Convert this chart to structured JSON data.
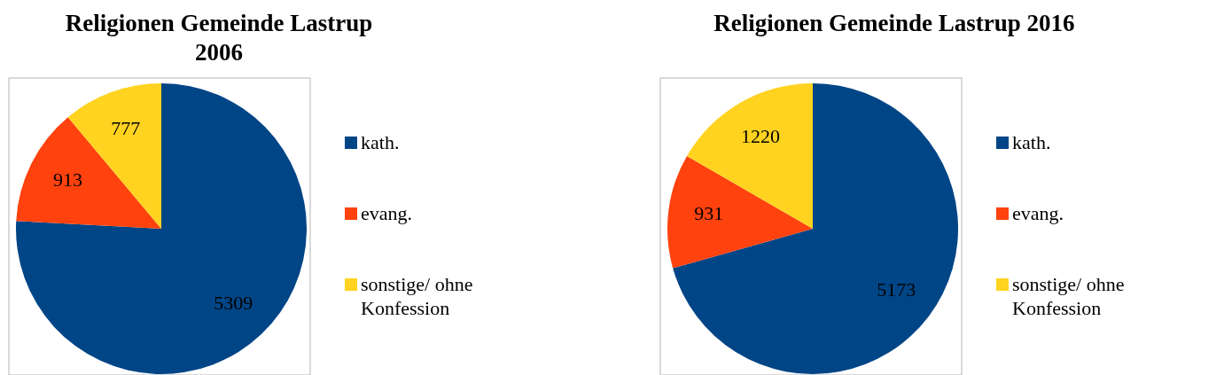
{
  "chart_data": [
    {
      "type": "pie",
      "title": "Religionen Gemeinde Lastrup 2006",
      "categories": [
        "kath.",
        "evang.",
        "sonstige/ ohne Konfession"
      ],
      "values": [
        5309,
        913,
        777
      ],
      "colors": [
        "#004586",
        "#ff420e",
        "#ffd320"
      ],
      "data_labels": true,
      "legend": "right"
    },
    {
      "type": "pie",
      "title": "Religionen Gemeinde Lastrup 2016",
      "categories": [
        "kath.",
        "evang.",
        "sonstige/ ohne Konfession"
      ],
      "values": [
        5173,
        931,
        1220
      ],
      "colors": [
        "#004586",
        "#ff420e",
        "#ffd320"
      ],
      "data_labels": true,
      "legend": "right"
    }
  ]
}
